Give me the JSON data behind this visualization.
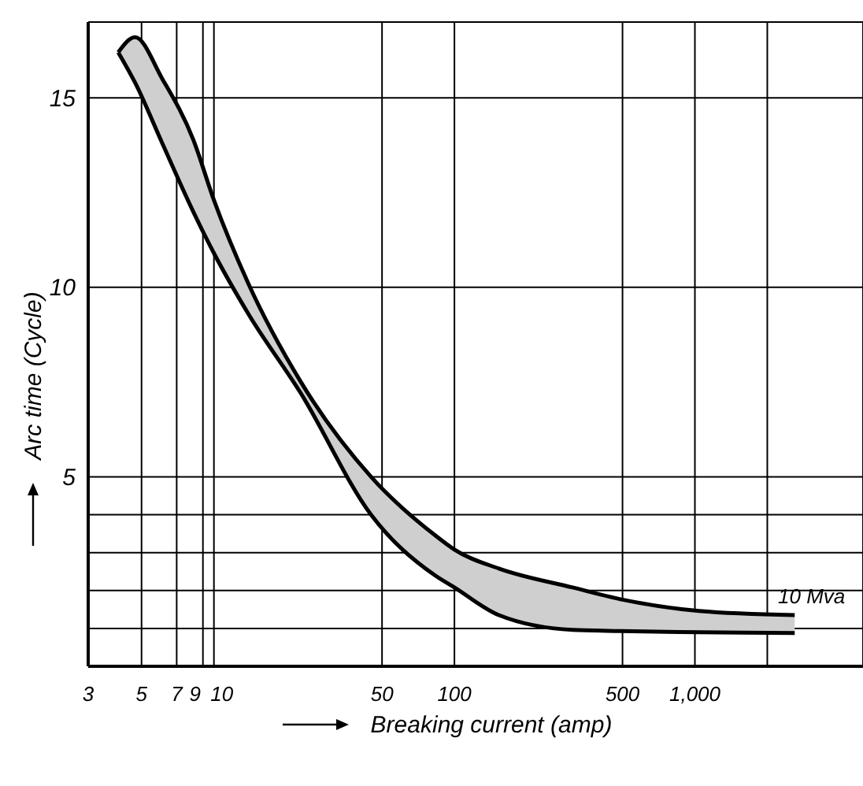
{
  "chart_data": {
    "type": "line",
    "xlabel": "Breaking current (amp)",
    "ylabel": "Arc time (Cycle)",
    "log": "x",
    "xlim": [
      3,
      5000
    ],
    "ylim": [
      0,
      17
    ],
    "xticks": [
      3,
      5,
      7,
      9,
      10,
      50,
      100,
      500,
      {
        "value": 1000,
        "label": "1,000"
      },
      {
        "value": 2000,
        "label": null
      }
    ],
    "yticks": [
      {
        "value": 1,
        "label": null
      },
      {
        "value": 2,
        "label": null
      },
      {
        "value": 3,
        "label": null
      },
      {
        "value": 4,
        "label": null
      },
      5,
      10,
      15
    ],
    "grid": true,
    "marker": "none",
    "series": [
      {
        "color": "#000000",
        "x": [
          4.0,
          4.7,
          6.1,
          8.2,
          10,
          13.9,
          23,
          45,
          83,
          100,
          153,
          310,
          490,
          1040,
          2600
        ],
        "values": [
          16.2,
          16.6,
          15.5,
          13.9,
          12.3,
          10.1,
          7.5,
          5,
          3.46,
          3.08,
          2.58,
          2.08,
          1.77,
          1.46,
          1.35
        ],
        "lower": [
          16.2,
          15.4,
          13.8,
          12.0,
          10.9,
          9.3,
          7.2,
          4.0,
          2.4,
          2.08,
          1.35,
          0.96,
          0.93,
          0.9,
          0.88
        ],
        "upper": [
          16.2,
          16.6,
          15.5,
          13.9,
          12.3,
          10.1,
          7.5,
          5,
          3.46,
          3.08,
          2.58,
          2.08,
          1.77,
          1.46,
          1.35
        ]
      },
      {
        "color": "#000000",
        "x": [
          4.0,
          4.7,
          6.1,
          8.2,
          10,
          13.9,
          23,
          45,
          83,
          100,
          153,
          310,
          490,
          1040,
          2600
        ],
        "values": [
          16.2,
          15.4,
          13.8,
          12.0,
          10.9,
          9.3,
          7.2,
          4.0,
          2.4,
          2.08,
          1.35,
          0.96,
          0.93,
          0.9,
          0.88
        ]
      }
    ],
    "annotations": [
      "10 Mva"
    ]
  }
}
